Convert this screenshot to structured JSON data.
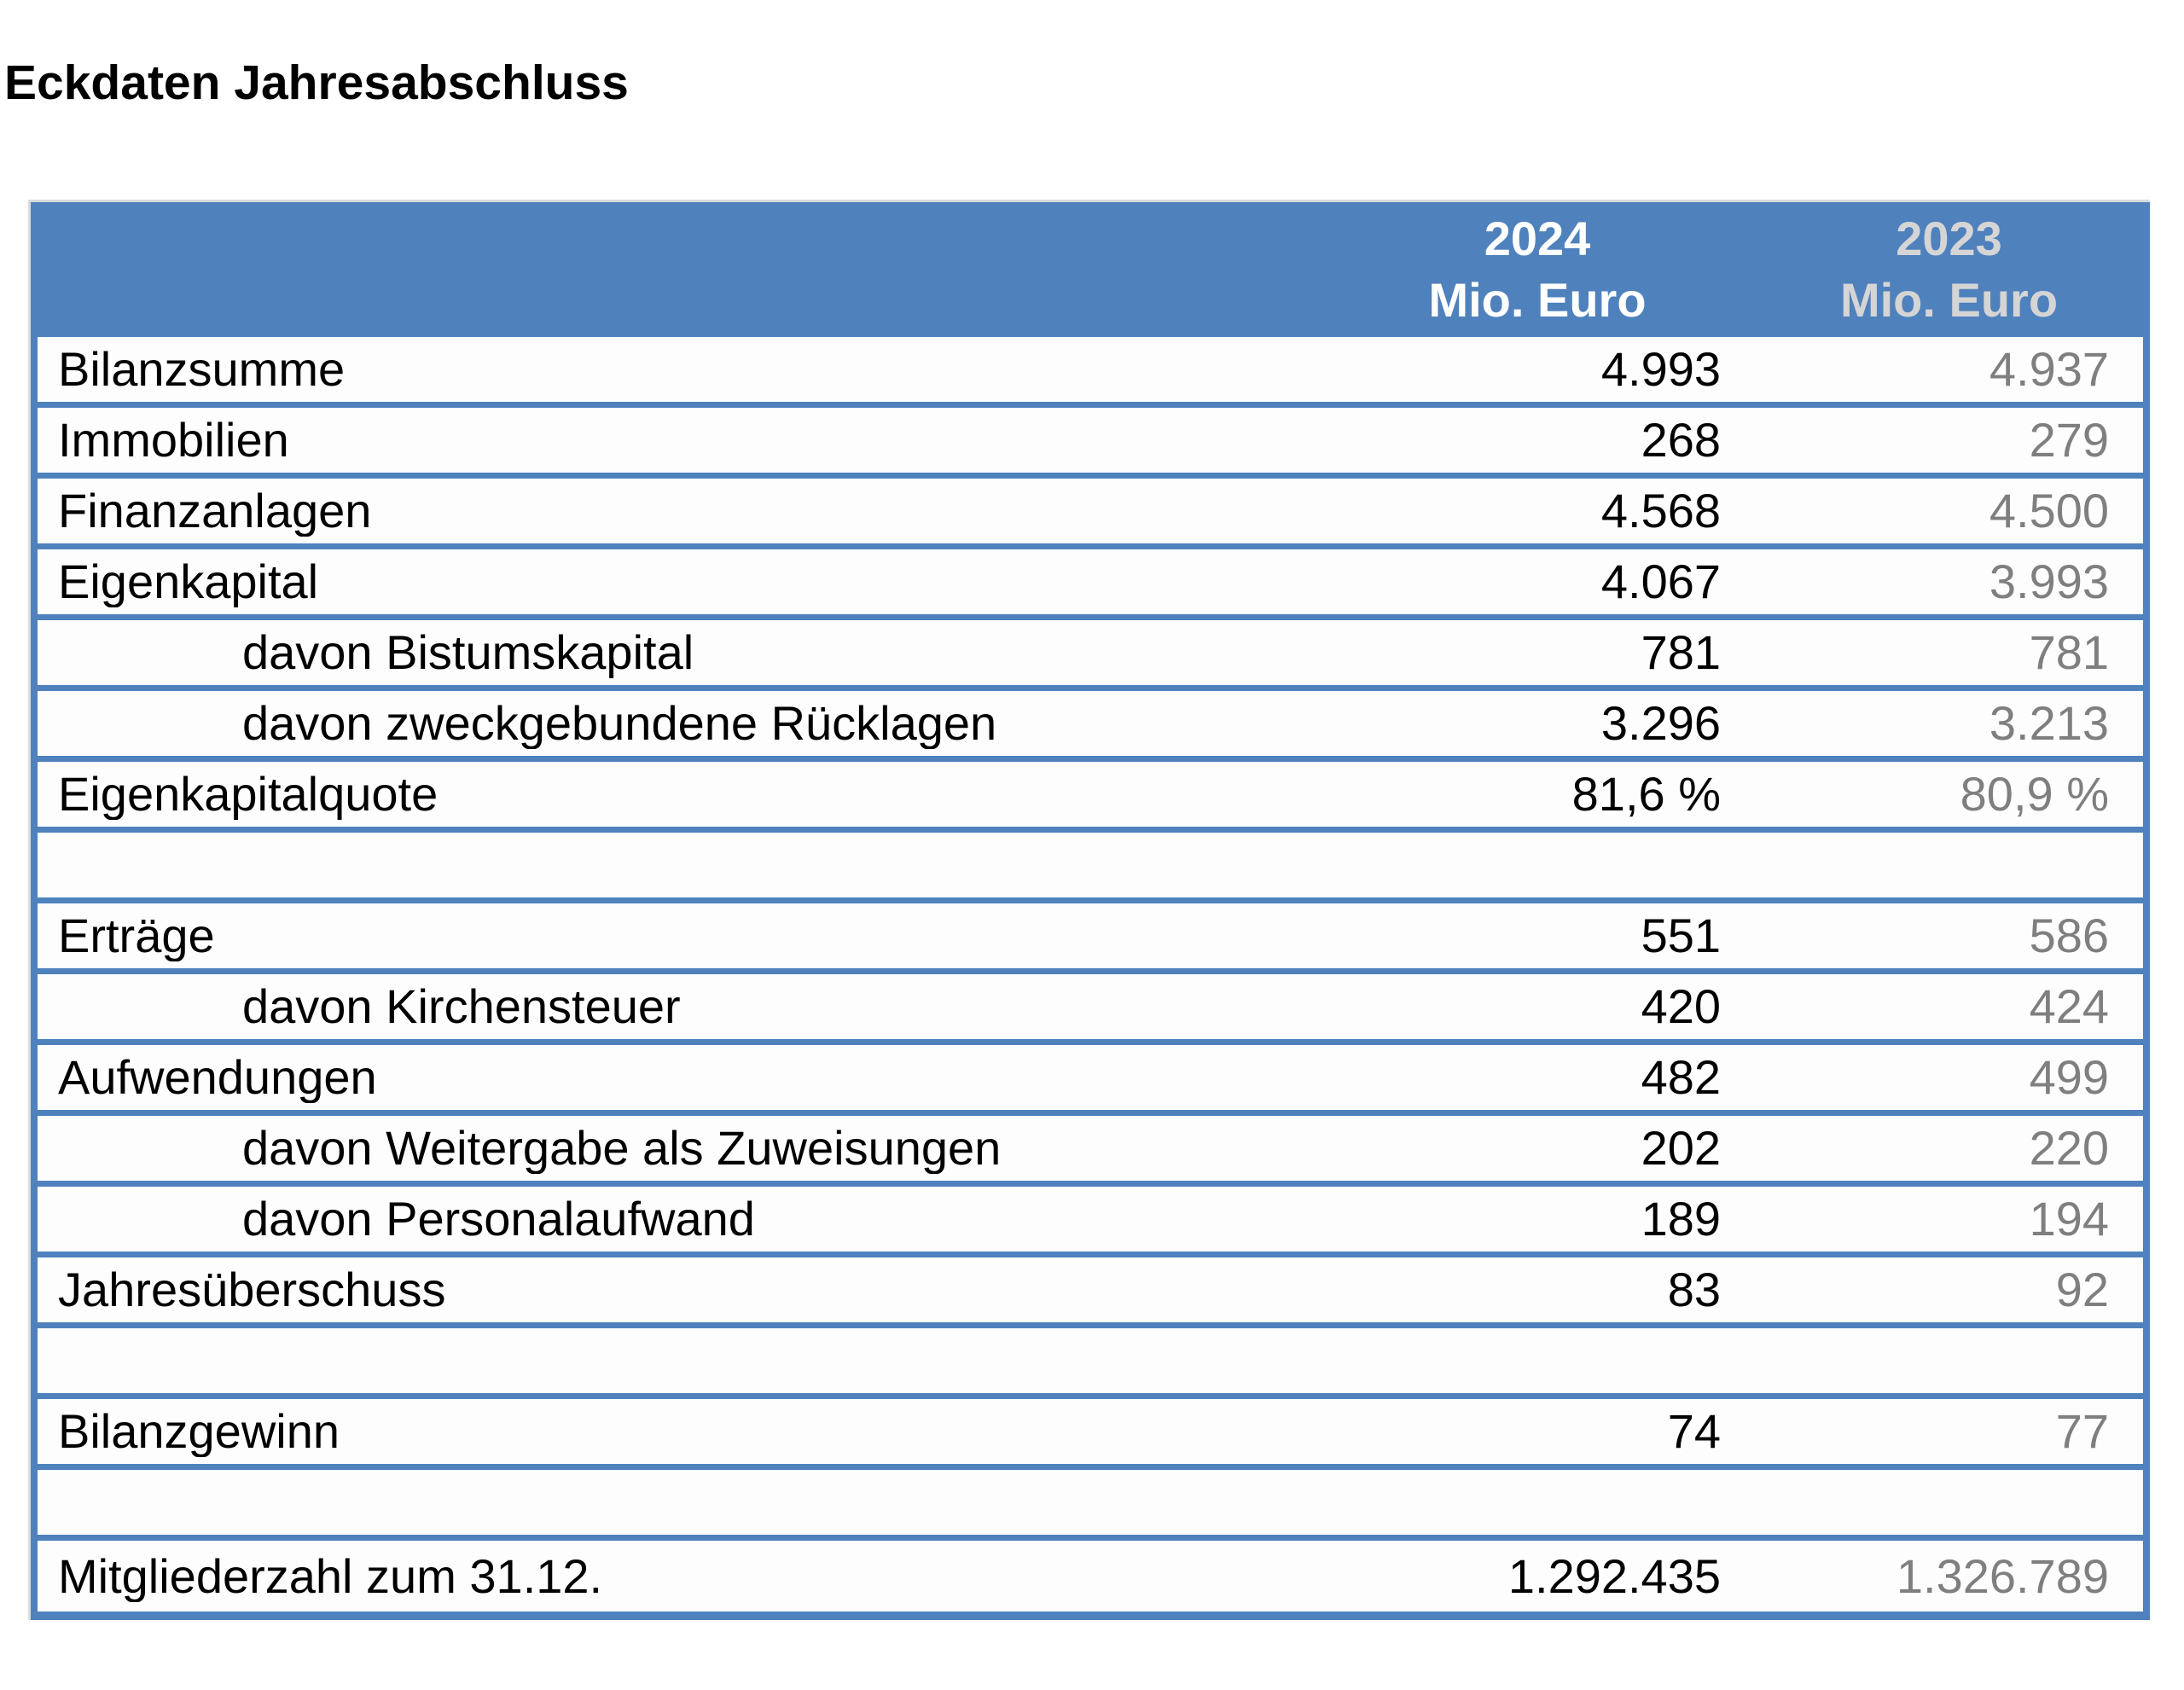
{
  "title": "Eckdaten Jahresabschluss",
  "table": {
    "header": {
      "col2024": {
        "year": "2024",
        "unit": "Mio. Euro"
      },
      "col2023": {
        "year": "2023",
        "unit": "Mio. Euro"
      }
    },
    "rows": [
      {
        "label": "Bilanzsumme",
        "indent": false,
        "empty": false,
        "v2024": "4.993",
        "v2023": "4.937"
      },
      {
        "label": "Immobilien",
        "indent": false,
        "empty": false,
        "v2024": "268",
        "v2023": "279"
      },
      {
        "label": "Finanzanlagen",
        "indent": false,
        "empty": false,
        "v2024": "4.568",
        "v2023": "4.500"
      },
      {
        "label": "Eigenkapital",
        "indent": false,
        "empty": false,
        "v2024": "4.067",
        "v2023": "3.993"
      },
      {
        "label": "davon Bistumskapital",
        "indent": true,
        "empty": false,
        "v2024": "781",
        "v2023": "781"
      },
      {
        "label": "davon zweckgebundene Rücklagen",
        "indent": true,
        "empty": false,
        "v2024": "3.296",
        "v2023": "3.213"
      },
      {
        "label": "Eigenkapitalquote",
        "indent": false,
        "empty": false,
        "v2024": "81,6 %",
        "v2023": "80,9 %"
      },
      {
        "label": "",
        "indent": false,
        "empty": true,
        "v2024": "",
        "v2023": ""
      },
      {
        "label": "Erträge",
        "indent": false,
        "empty": false,
        "v2024": "551",
        "v2023": "586"
      },
      {
        "label": "davon Kirchensteuer",
        "indent": true,
        "empty": false,
        "v2024": "420",
        "v2023": "424"
      },
      {
        "label": "Aufwendungen",
        "indent": false,
        "empty": false,
        "v2024": "482",
        "v2023": "499"
      },
      {
        "label": "davon Weitergabe als Zuweisungen",
        "indent": true,
        "empty": false,
        "v2024": "202",
        "v2023": "220"
      },
      {
        "label": "davon Personalaufwand",
        "indent": true,
        "empty": false,
        "v2024": "189",
        "v2023": "194"
      },
      {
        "label": "Jahresüberschuss",
        "indent": false,
        "empty": false,
        "v2024": "83",
        "v2023": "92"
      },
      {
        "label": "",
        "indent": false,
        "empty": true,
        "v2024": "",
        "v2023": ""
      },
      {
        "label": "Bilanzgewinn",
        "indent": false,
        "empty": false,
        "v2024": "74",
        "v2023": "77"
      },
      {
        "label": "",
        "indent": false,
        "empty": true,
        "v2024": "",
        "v2023": ""
      },
      {
        "label": "Mitgliederzahl zum 31.12.",
        "indent": false,
        "empty": false,
        "v2024": "1.292.435",
        "v2023": "1.326.789"
      }
    ],
    "colors": {
      "accent_blue": "#4f81bd",
      "header_text_current": "#ffffff",
      "header_text_prior": "#d5d5d5",
      "value_text_current": "#000000",
      "value_text_prior": "#7f7f7f"
    }
  }
}
